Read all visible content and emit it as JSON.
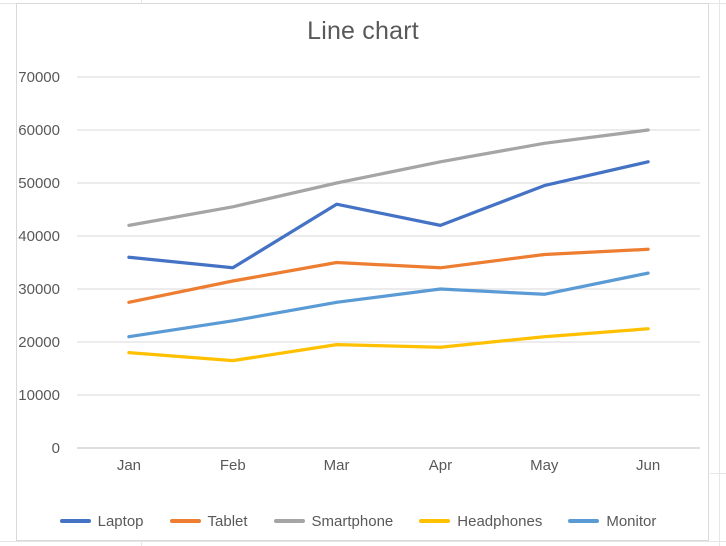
{
  "chart_data": {
    "type": "line",
    "title": "Line chart",
    "xlabel": "",
    "ylabel": "",
    "categories": [
      "Jan",
      "Feb",
      "Mar",
      "Apr",
      "May",
      "Jun"
    ],
    "series": [
      {
        "name": "Laptop",
        "color": "#4472C4",
        "values": [
          36000,
          34000,
          46000,
          42000,
          49500,
          54000
        ]
      },
      {
        "name": "Tablet",
        "color": "#ED7D31",
        "values": [
          27500,
          31500,
          35000,
          34000,
          36500,
          37500
        ]
      },
      {
        "name": "Smartphone",
        "color": "#A5A5A5",
        "values": [
          42000,
          45500,
          50000,
          54000,
          57500,
          60000
        ]
      },
      {
        "name": "Headphones",
        "color": "#FFC000",
        "values": [
          18000,
          16500,
          19500,
          19000,
          21000,
          22500
        ]
      },
      {
        "name": "Monitor",
        "color": "#5B9BD5",
        "values": [
          21000,
          24000,
          27500,
          30000,
          29000,
          33000
        ]
      }
    ],
    "ylim": [
      0,
      70000
    ],
    "yticks": [
      0,
      10000,
      20000,
      30000,
      40000,
      50000,
      60000,
      70000
    ],
    "grid": true,
    "legend_position": "bottom"
  },
  "colors": {
    "title_text": "#595959",
    "axis_text": "#595959",
    "gridline": "#D9D9D9",
    "axis_line": "#BFBFBF",
    "chart_border": "#D9D9D9",
    "sheet_line": "#E6E6E6",
    "background": "#FFFFFF"
  }
}
